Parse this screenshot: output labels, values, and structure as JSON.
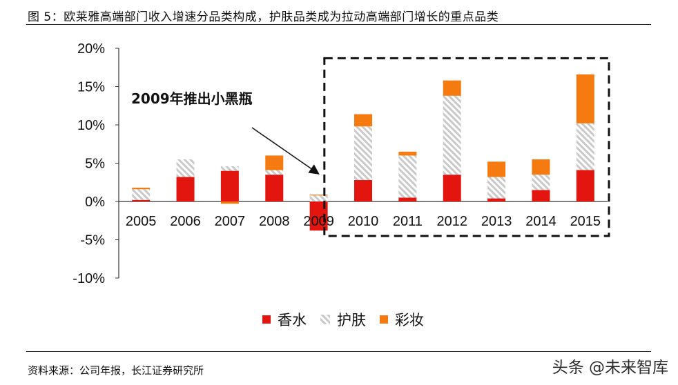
{
  "header": {
    "title": "图 5：欧莱雅高端部门收入增速分品类构成，护肤品类成为拉动高端部门增长的重点品类"
  },
  "footer": {
    "source": "资料来源：公司年报，长江证券研究所",
    "watermark": "头条 @未来智库"
  },
  "colors": {
    "perfume": "#e3150f",
    "skincare_stripe": "#c9c9c9",
    "makeup": "#f57a10",
    "axis": "#333333",
    "box": "#111111"
  },
  "chart_data": {
    "type": "bar",
    "stacked": true,
    "categories": [
      "2005",
      "2006",
      "2007",
      "2008",
      "2009",
      "2010",
      "2011",
      "2012",
      "2013",
      "2014",
      "2015"
    ],
    "series": [
      {
        "name": "香水",
        "values": [
          0.2,
          3.2,
          4.0,
          3.5,
          -3.8,
          2.8,
          0.5,
          3.5,
          0.4,
          1.5,
          4.1
        ]
      },
      {
        "name": "护肤",
        "values": [
          1.4,
          2.3,
          0.6,
          0.6,
          0.8,
          7.0,
          5.5,
          10.3,
          2.8,
          2.0,
          6.1
        ]
      },
      {
        "name": "彩妆",
        "values": [
          0.2,
          0.0,
          -0.3,
          1.9,
          0.1,
          1.6,
          0.5,
          2.0,
          2.0,
          2.0,
          6.4
        ]
      }
    ],
    "y_ticks": [
      "20%",
      "15%",
      "10%",
      "5%",
      "0%",
      "-5%",
      "-10%"
    ],
    "y_tick_values": [
      20,
      15,
      10,
      5,
      0,
      -5,
      -10
    ],
    "ylim": [
      -10,
      20
    ],
    "annotation": "2009年推出小黑瓶",
    "highlight_range": [
      "2010",
      "2015"
    ],
    "legend_position": "bottom"
  }
}
